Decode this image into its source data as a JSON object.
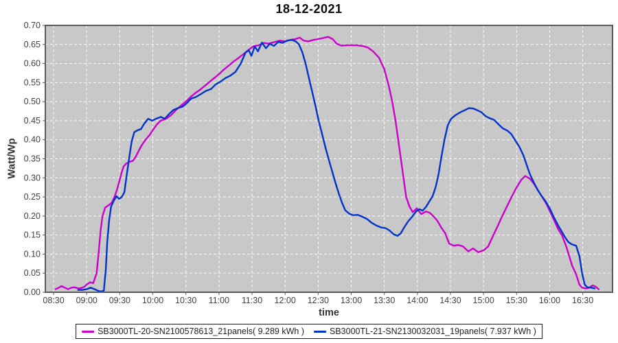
{
  "title": "18-12-2021",
  "y_axis": {
    "label": "Watt/Wp",
    "ticks": [
      "0.00",
      "0.05",
      "0.10",
      "0.15",
      "0.20",
      "0.25",
      "0.30",
      "0.35",
      "0.40",
      "0.45",
      "0.50",
      "0.55",
      "0.60",
      "0.65",
      "0.70"
    ]
  },
  "x_axis": {
    "label": "time",
    "ticks": [
      "08:30",
      "09:00",
      "09:30",
      "10:00",
      "10:30",
      "11:00",
      "11:30",
      "12:00",
      "12:30",
      "13:00",
      "13:30",
      "14:00",
      "14:30",
      "15:00",
      "15:30",
      "16:00",
      "16:30"
    ]
  },
  "legend": {
    "items": [
      {
        "label": "SB3000TL-20-SN2100578613_21panels( 9.289 kWh )",
        "color": "#cc00cc"
      },
      {
        "label": "SB3000TL-21-SN2130032031_19panels( 7.937 kWh )",
        "color": "#0033cc"
      }
    ]
  },
  "colors": {
    "plot_bg": "#c8c8c8",
    "grid": "#ffffff",
    "border": "#5a5a5a",
    "tick": "#555555",
    "tick_text": "#3f3f3f"
  },
  "chart_data": {
    "type": "line",
    "title": "18-12-2021",
    "xlabel": "time",
    "ylabel": "Watt/Wp",
    "x_unit": "decimal hours",
    "xlim": [
      8.375,
      16.95
    ],
    "ylim": [
      0,
      0.7
    ],
    "grid": true,
    "legend_position": "bottom",
    "series": [
      {
        "name": "SB3000TL-20-SN2100578613_21panels( 9.289 kWh )",
        "energy_kwh": 9.289,
        "color": "#cc00cc",
        "points": [
          [
            8.53,
            0.008
          ],
          [
            8.58,
            0.012
          ],
          [
            8.62,
            0.016
          ],
          [
            8.67,
            0.012
          ],
          [
            8.72,
            0.008
          ],
          [
            8.77,
            0.012
          ],
          [
            8.82,
            0.013
          ],
          [
            8.87,
            0.01
          ],
          [
            8.92,
            0.011
          ],
          [
            8.97,
            0.015
          ],
          [
            9.0,
            0.02
          ],
          [
            9.05,
            0.026
          ],
          [
            9.1,
            0.024
          ],
          [
            9.15,
            0.05
          ],
          [
            9.18,
            0.1
          ],
          [
            9.21,
            0.16
          ],
          [
            9.24,
            0.2
          ],
          [
            9.28,
            0.222
          ],
          [
            9.33,
            0.228
          ],
          [
            9.38,
            0.235
          ],
          [
            9.42,
            0.25
          ],
          [
            9.46,
            0.27
          ],
          [
            9.5,
            0.295
          ],
          [
            9.53,
            0.315
          ],
          [
            9.56,
            0.33
          ],
          [
            9.6,
            0.338
          ],
          [
            9.65,
            0.342
          ],
          [
            9.7,
            0.345
          ],
          [
            9.74,
            0.355
          ],
          [
            9.79,
            0.372
          ],
          [
            9.83,
            0.385
          ],
          [
            9.89,
            0.4
          ],
          [
            9.95,
            0.412
          ],
          [
            10.0,
            0.425
          ],
          [
            10.06,
            0.44
          ],
          [
            10.12,
            0.45
          ],
          [
            10.2,
            0.455
          ],
          [
            10.28,
            0.465
          ],
          [
            10.35,
            0.478
          ],
          [
            10.43,
            0.49
          ],
          [
            10.5,
            0.5
          ],
          [
            10.57,
            0.512
          ],
          [
            10.64,
            0.522
          ],
          [
            10.72,
            0.532
          ],
          [
            10.79,
            0.542
          ],
          [
            10.86,
            0.552
          ],
          [
            10.93,
            0.562
          ],
          [
            11.0,
            0.572
          ],
          [
            11.08,
            0.585
          ],
          [
            11.15,
            0.595
          ],
          [
            11.22,
            0.605
          ],
          [
            11.3,
            0.615
          ],
          [
            11.38,
            0.626
          ],
          [
            11.45,
            0.636
          ],
          [
            11.52,
            0.645
          ],
          [
            11.6,
            0.648
          ],
          [
            11.68,
            0.654
          ],
          [
            11.75,
            0.652
          ],
          [
            11.83,
            0.656
          ],
          [
            11.92,
            0.66
          ],
          [
            12.0,
            0.658
          ],
          [
            12.08,
            0.662
          ],
          [
            12.16,
            0.664
          ],
          [
            12.22,
            0.668
          ],
          [
            12.28,
            0.66
          ],
          [
            12.35,
            0.658
          ],
          [
            12.43,
            0.662
          ],
          [
            12.5,
            0.664
          ],
          [
            12.58,
            0.667
          ],
          [
            12.65,
            0.67
          ],
          [
            12.72,
            0.664
          ],
          [
            12.78,
            0.652
          ],
          [
            12.85,
            0.647
          ],
          [
            12.93,
            0.648
          ],
          [
            13.0,
            0.648
          ],
          [
            13.08,
            0.648
          ],
          [
            13.17,
            0.646
          ],
          [
            13.25,
            0.642
          ],
          [
            13.33,
            0.632
          ],
          [
            13.42,
            0.615
          ],
          [
            13.5,
            0.585
          ],
          [
            13.57,
            0.54
          ],
          [
            13.62,
            0.5
          ],
          [
            13.67,
            0.45
          ],
          [
            13.71,
            0.4
          ],
          [
            13.75,
            0.35
          ],
          [
            13.79,
            0.3
          ],
          [
            13.83,
            0.25
          ],
          [
            13.88,
            0.225
          ],
          [
            13.93,
            0.21
          ],
          [
            13.99,
            0.22
          ],
          [
            14.06,
            0.205
          ],
          [
            14.13,
            0.212
          ],
          [
            14.19,
            0.208
          ],
          [
            14.25,
            0.198
          ],
          [
            14.3,
            0.188
          ],
          [
            14.36,
            0.17
          ],
          [
            14.42,
            0.155
          ],
          [
            14.48,
            0.128
          ],
          [
            14.55,
            0.122
          ],
          [
            14.62,
            0.124
          ],
          [
            14.69,
            0.12
          ],
          [
            14.77,
            0.107
          ],
          [
            14.84,
            0.115
          ],
          [
            14.92,
            0.105
          ],
          [
            15.0,
            0.11
          ],
          [
            15.07,
            0.12
          ],
          [
            15.15,
            0.15
          ],
          [
            15.21,
            0.172
          ],
          [
            15.27,
            0.195
          ],
          [
            15.34,
            0.22
          ],
          [
            15.43,
            0.252
          ],
          [
            15.5,
            0.275
          ],
          [
            15.57,
            0.295
          ],
          [
            15.63,
            0.305
          ],
          [
            15.7,
            0.298
          ],
          [
            15.76,
            0.285
          ],
          [
            15.82,
            0.268
          ],
          [
            15.88,
            0.252
          ],
          [
            15.95,
            0.232
          ],
          [
            16.01,
            0.21
          ],
          [
            16.07,
            0.188
          ],
          [
            16.13,
            0.165
          ],
          [
            16.19,
            0.148
          ],
          [
            16.25,
            0.12
          ],
          [
            16.29,
            0.098
          ],
          [
            16.34,
            0.07
          ],
          [
            16.4,
            0.047
          ],
          [
            16.45,
            0.02
          ],
          [
            16.49,
            0.012
          ],
          [
            16.55,
            0.01
          ],
          [
            16.6,
            0.012
          ],
          [
            16.65,
            0.018
          ],
          [
            16.7,
            0.014
          ],
          [
            16.74,
            0.008
          ]
        ]
      },
      {
        "name": "SB3000TL-21-SN2130032031_19panels( 7.937 kWh )",
        "energy_kwh": 7.937,
        "color": "#0033cc",
        "points": [
          [
            8.87,
            0.006
          ],
          [
            8.93,
            0.006
          ],
          [
            9.0,
            0.008
          ],
          [
            9.06,
            0.012
          ],
          [
            9.12,
            0.008
          ],
          [
            9.17,
            0.004
          ],
          [
            9.21,
            0.002
          ],
          [
            9.26,
            0.004
          ],
          [
            9.29,
            0.06
          ],
          [
            9.31,
            0.13
          ],
          [
            9.34,
            0.19
          ],
          [
            9.37,
            0.225
          ],
          [
            9.41,
            0.24
          ],
          [
            9.45,
            0.252
          ],
          [
            9.49,
            0.245
          ],
          [
            9.53,
            0.25
          ],
          [
            9.57,
            0.262
          ],
          [
            9.6,
            0.3
          ],
          [
            9.64,
            0.35
          ],
          [
            9.68,
            0.395
          ],
          [
            9.72,
            0.42
          ],
          [
            9.77,
            0.425
          ],
          [
            9.82,
            0.428
          ],
          [
            9.87,
            0.442
          ],
          [
            9.93,
            0.455
          ],
          [
            9.99,
            0.45
          ],
          [
            10.05,
            0.455
          ],
          [
            10.12,
            0.46
          ],
          [
            10.18,
            0.455
          ],
          [
            10.25,
            0.468
          ],
          [
            10.31,
            0.478
          ],
          [
            10.38,
            0.483
          ],
          [
            10.45,
            0.487
          ],
          [
            10.52,
            0.497
          ],
          [
            10.58,
            0.508
          ],
          [
            10.65,
            0.512
          ],
          [
            10.73,
            0.52
          ],
          [
            10.8,
            0.528
          ],
          [
            10.88,
            0.533
          ],
          [
            10.95,
            0.545
          ],
          [
            11.02,
            0.552
          ],
          [
            11.1,
            0.562
          ],
          [
            11.17,
            0.568
          ],
          [
            11.25,
            0.578
          ],
          [
            11.33,
            0.6
          ],
          [
            11.4,
            0.628
          ],
          [
            11.45,
            0.635
          ],
          [
            11.49,
            0.62
          ],
          [
            11.54,
            0.645
          ],
          [
            11.59,
            0.632
          ],
          [
            11.65,
            0.655
          ],
          [
            11.71,
            0.64
          ],
          [
            11.77,
            0.652
          ],
          [
            11.83,
            0.646
          ],
          [
            11.9,
            0.657
          ],
          [
            11.96,
            0.654
          ],
          [
            12.03,
            0.66
          ],
          [
            12.1,
            0.662
          ],
          [
            12.16,
            0.658
          ],
          [
            12.21,
            0.65
          ],
          [
            12.26,
            0.63
          ],
          [
            12.31,
            0.6
          ],
          [
            12.36,
            0.562
          ],
          [
            12.41,
            0.525
          ],
          [
            12.46,
            0.488
          ],
          [
            12.51,
            0.448
          ],
          [
            12.56,
            0.415
          ],
          [
            12.61,
            0.38
          ],
          [
            12.66,
            0.348
          ],
          [
            12.71,
            0.318
          ],
          [
            12.76,
            0.288
          ],
          [
            12.81,
            0.26
          ],
          [
            12.86,
            0.235
          ],
          [
            12.91,
            0.215
          ],
          [
            12.97,
            0.206
          ],
          [
            13.03,
            0.202
          ],
          [
            13.1,
            0.203
          ],
          [
            13.17,
            0.198
          ],
          [
            13.24,
            0.192
          ],
          [
            13.31,
            0.182
          ],
          [
            13.38,
            0.175
          ],
          [
            13.45,
            0.17
          ],
          [
            13.52,
            0.168
          ],
          [
            13.58,
            0.162
          ],
          [
            13.64,
            0.152
          ],
          [
            13.7,
            0.148
          ],
          [
            13.75,
            0.155
          ],
          [
            13.8,
            0.17
          ],
          [
            13.86,
            0.186
          ],
          [
            13.92,
            0.198
          ],
          [
            13.98,
            0.212
          ],
          [
            14.03,
            0.218
          ],
          [
            14.08,
            0.214
          ],
          [
            14.13,
            0.224
          ],
          [
            14.18,
            0.238
          ],
          [
            14.23,
            0.252
          ],
          [
            14.28,
            0.278
          ],
          [
            14.32,
            0.31
          ],
          [
            14.36,
            0.352
          ],
          [
            14.41,
            0.4
          ],
          [
            14.46,
            0.438
          ],
          [
            14.51,
            0.455
          ],
          [
            14.58,
            0.465
          ],
          [
            14.65,
            0.472
          ],
          [
            14.72,
            0.478
          ],
          [
            14.78,
            0.483
          ],
          [
            14.84,
            0.482
          ],
          [
            14.9,
            0.478
          ],
          [
            14.97,
            0.472
          ],
          [
            15.03,
            0.462
          ],
          [
            15.1,
            0.456
          ],
          [
            15.16,
            0.452
          ],
          [
            15.23,
            0.44
          ],
          [
            15.29,
            0.43
          ],
          [
            15.36,
            0.424
          ],
          [
            15.42,
            0.415
          ],
          [
            15.48,
            0.398
          ],
          [
            15.54,
            0.382
          ],
          [
            15.6,
            0.36
          ],
          [
            15.65,
            0.335
          ],
          [
            15.7,
            0.31
          ],
          [
            15.76,
            0.288
          ],
          [
            15.82,
            0.268
          ],
          [
            15.88,
            0.252
          ],
          [
            15.94,
            0.238
          ],
          [
            16.0,
            0.22
          ],
          [
            16.06,
            0.198
          ],
          [
            16.12,
            0.178
          ],
          [
            16.18,
            0.16
          ],
          [
            16.23,
            0.145
          ],
          [
            16.28,
            0.132
          ],
          [
            16.33,
            0.126
          ],
          [
            16.4,
            0.122
          ],
          [
            16.45,
            0.095
          ],
          [
            16.49,
            0.05
          ],
          [
            16.53,
            0.02
          ],
          [
            16.57,
            0.013
          ],
          [
            16.63,
            0.012
          ],
          [
            16.68,
            0.01
          ]
        ]
      }
    ]
  }
}
